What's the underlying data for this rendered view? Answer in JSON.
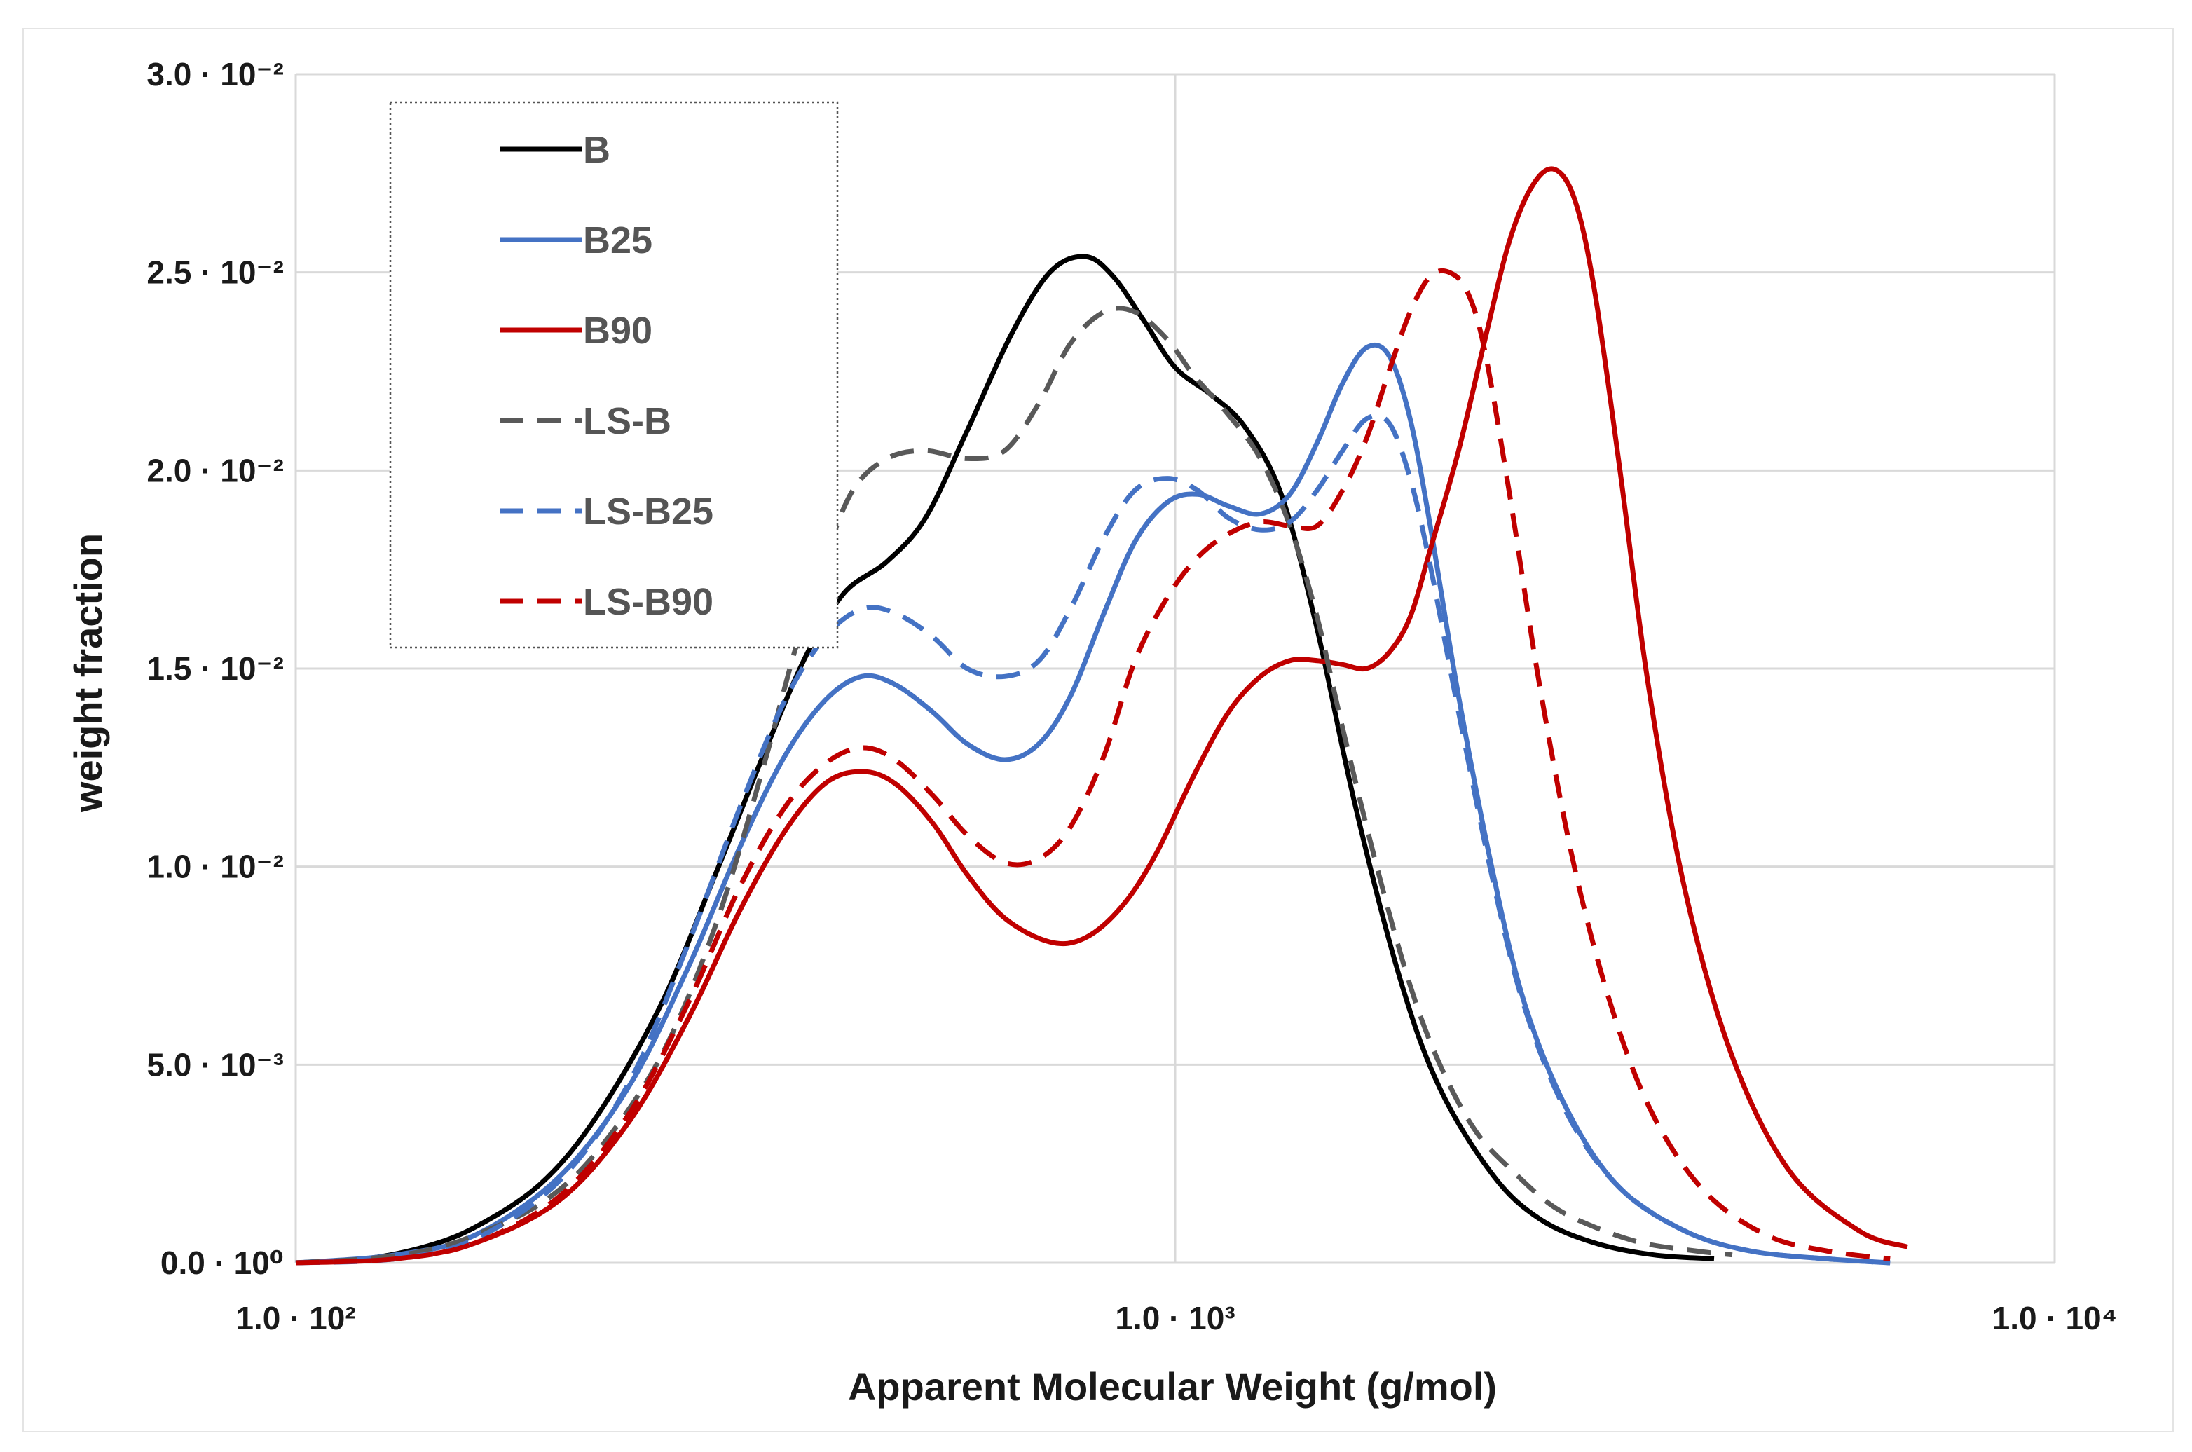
{
  "chart_data": {
    "type": "line",
    "title": "",
    "xlabel": "Apparent Molecular Weight (g/mol)",
    "ylabel": "weight fraction",
    "xscale": "log",
    "xlim": [
      100,
      10000
    ],
    "ylim": [
      0,
      0.03
    ],
    "grid": true,
    "legend_position": "top-left",
    "x_ticks": [
      {
        "value": 100,
        "label": "1.0 · 10²"
      },
      {
        "value": 1000,
        "label": "1.0 · 10³"
      },
      {
        "value": 10000,
        "label": "1.0 · 10⁴"
      }
    ],
    "y_ticks": [
      {
        "value": 0,
        "label": "0.0 · 10⁰"
      },
      {
        "value": 0.005,
        "label": "5.0 · 10⁻³"
      },
      {
        "value": 0.01,
        "label": "1.0 · 10⁻²"
      },
      {
        "value": 0.015,
        "label": "1.5 · 10⁻²"
      },
      {
        "value": 0.02,
        "label": "2.0 · 10⁻²"
      },
      {
        "value": 0.025,
        "label": "2.5 · 10⁻²"
      },
      {
        "value": 0.03,
        "label": "3.0 · 10⁻²"
      }
    ],
    "series": [
      {
        "name": "B",
        "color": "#000000",
        "dash": "solid",
        "x": [
          100,
          120,
          140,
          160,
          190,
          220,
          260,
          300,
          340,
          380,
          420,
          470,
          520,
          580,
          650,
          720,
          790,
          850,
          920,
          1000,
          1100,
          1200,
          1320,
          1450,
          1600,
          1800,
          2000,
          2300,
          2600,
          3000,
          3500,
          4100
        ],
        "y": [
          0,
          0.0001,
          0.0004,
          0.0009,
          0.002,
          0.0037,
          0.0065,
          0.0098,
          0.0128,
          0.0153,
          0.0169,
          0.0177,
          0.0188,
          0.021,
          0.0234,
          0.025,
          0.0254,
          0.0249,
          0.0238,
          0.0226,
          0.0219,
          0.0211,
          0.0194,
          0.016,
          0.0116,
          0.0072,
          0.0044,
          0.0022,
          0.0011,
          0.0005,
          0.0002,
          0.0001
        ]
      },
      {
        "name": "B25",
        "color": "#4472c4",
        "dash": "solid",
        "x": [
          100,
          130,
          160,
          200,
          240,
          280,
          320,
          360,
          400,
          440,
          480,
          530,
          580,
          640,
          700,
          760,
          830,
          900,
          980,
          1060,
          1150,
          1250,
          1350,
          1450,
          1550,
          1650,
          1750,
          1850,
          1950,
          2100,
          2300,
          2500,
          2800,
          3200,
          3800,
          4500,
          5500,
          6500
        ],
        "y": [
          0,
          0.0002,
          0.0007,
          0.0022,
          0.0045,
          0.0075,
          0.0105,
          0.0128,
          0.0142,
          0.0148,
          0.0146,
          0.0139,
          0.0131,
          0.0127,
          0.0131,
          0.0143,
          0.0164,
          0.0182,
          0.0192,
          0.0194,
          0.0191,
          0.0189,
          0.0194,
          0.0207,
          0.0222,
          0.0231,
          0.0229,
          0.0213,
          0.0186,
          0.0143,
          0.0098,
          0.0065,
          0.0038,
          0.0019,
          0.0008,
          0.0003,
          0.0001,
          0
        ]
      },
      {
        "name": "B90",
        "color": "#c00000",
        "dash": "solid",
        "x": [
          100,
          130,
          160,
          200,
          240,
          280,
          320,
          360,
          400,
          440,
          480,
          530,
          580,
          640,
          720,
          790,
          870,
          950,
          1050,
          1150,
          1250,
          1350,
          1450,
          1550,
          1650,
          1750,
          1850,
          1950,
          2100,
          2250,
          2400,
          2550,
          2700,
          2850,
          3000,
          3200,
          3450,
          3800,
          4300,
          5000,
          6000,
          6800
        ],
        "y": [
          0,
          0.0001,
          0.0005,
          0.0016,
          0.0036,
          0.0062,
          0.0089,
          0.0109,
          0.0121,
          0.0124,
          0.0121,
          0.0111,
          0.0098,
          0.0087,
          0.0081,
          0.0082,
          0.009,
          0.0103,
          0.0123,
          0.0139,
          0.0148,
          0.0152,
          0.0152,
          0.0151,
          0.015,
          0.0154,
          0.0163,
          0.018,
          0.0205,
          0.0233,
          0.0258,
          0.0272,
          0.0276,
          0.0268,
          0.0245,
          0.0201,
          0.0146,
          0.0094,
          0.0052,
          0.0023,
          0.0008,
          0.0004
        ]
      },
      {
        "name": "LS-B",
        "color": "#595959",
        "dash": "dashed",
        "x": [
          100,
          120,
          140,
          160,
          190,
          220,
          260,
          300,
          340,
          370,
          400,
          430,
          470,
          520,
          580,
          640,
          700,
          760,
          830,
          900,
          980,
          1050,
          1150,
          1250,
          1350,
          1450,
          1550,
          1700,
          1850,
          2000,
          2200,
          2450,
          2700,
          3000,
          3400,
          3900,
          4300
        ],
        "y": [
          0,
          0.0001,
          0.0003,
          0.0007,
          0.0015,
          0.0028,
          0.0052,
          0.0085,
          0.0125,
          0.0155,
          0.0178,
          0.0195,
          0.0203,
          0.0205,
          0.0203,
          0.0205,
          0.0217,
          0.0232,
          0.024,
          0.024,
          0.0233,
          0.0224,
          0.0214,
          0.0203,
          0.0186,
          0.0163,
          0.0135,
          0.0099,
          0.007,
          0.005,
          0.0033,
          0.0022,
          0.0014,
          0.0009,
          0.0005,
          0.0003,
          0.0002
        ]
      },
      {
        "name": "LS-B25",
        "color": "#4472c4",
        "dash": "dashed",
        "x": [
          100,
          130,
          160,
          200,
          240,
          280,
          320,
          360,
          400,
          440,
          480,
          530,
          580,
          640,
          700,
          760,
          830,
          900,
          980,
          1060,
          1150,
          1250,
          1350,
          1450,
          1550,
          1650,
          1750,
          1850,
          1950,
          2100,
          2300,
          2500,
          2800,
          3200,
          3800,
          4500,
          5500,
          6500
        ],
        "y": [
          0,
          0.0001,
          0.0006,
          0.0021,
          0.0046,
          0.0081,
          0.0115,
          0.0142,
          0.0158,
          0.0165,
          0.0164,
          0.0158,
          0.015,
          0.0148,
          0.0152,
          0.0165,
          0.0183,
          0.0195,
          0.0198,
          0.0195,
          0.0188,
          0.0185,
          0.0187,
          0.0195,
          0.0205,
          0.0213,
          0.0212,
          0.0198,
          0.0176,
          0.0139,
          0.0096,
          0.0064,
          0.0037,
          0.0019,
          0.0008,
          0.0003,
          0.0001,
          0
        ]
      },
      {
        "name": "LS-B90",
        "color": "#c00000",
        "dash": "dashed",
        "x": [
          100,
          130,
          160,
          200,
          240,
          280,
          320,
          360,
          400,
          440,
          480,
          530,
          580,
          640,
          700,
          760,
          830,
          900,
          980,
          1060,
          1150,
          1250,
          1350,
          1450,
          1550,
          1650,
          1750,
          1850,
          1950,
          2050,
          2150,
          2250,
          2400,
          2600,
          2850,
          3150,
          3500,
          4000,
          4700,
          5500,
          6500
        ],
        "y": [
          0,
          0.0001,
          0.0005,
          0.0017,
          0.0038,
          0.0066,
          0.0095,
          0.0115,
          0.0126,
          0.013,
          0.0127,
          0.0118,
          0.0108,
          0.0101,
          0.0102,
          0.011,
          0.0128,
          0.0152,
          0.0168,
          0.0178,
          0.0184,
          0.0187,
          0.0186,
          0.0186,
          0.0195,
          0.0208,
          0.0225,
          0.024,
          0.0249,
          0.025,
          0.0245,
          0.023,
          0.0194,
          0.0145,
          0.0099,
          0.0063,
          0.0037,
          0.0018,
          0.0007,
          0.0003,
          0.0001
        ]
      }
    ]
  }
}
